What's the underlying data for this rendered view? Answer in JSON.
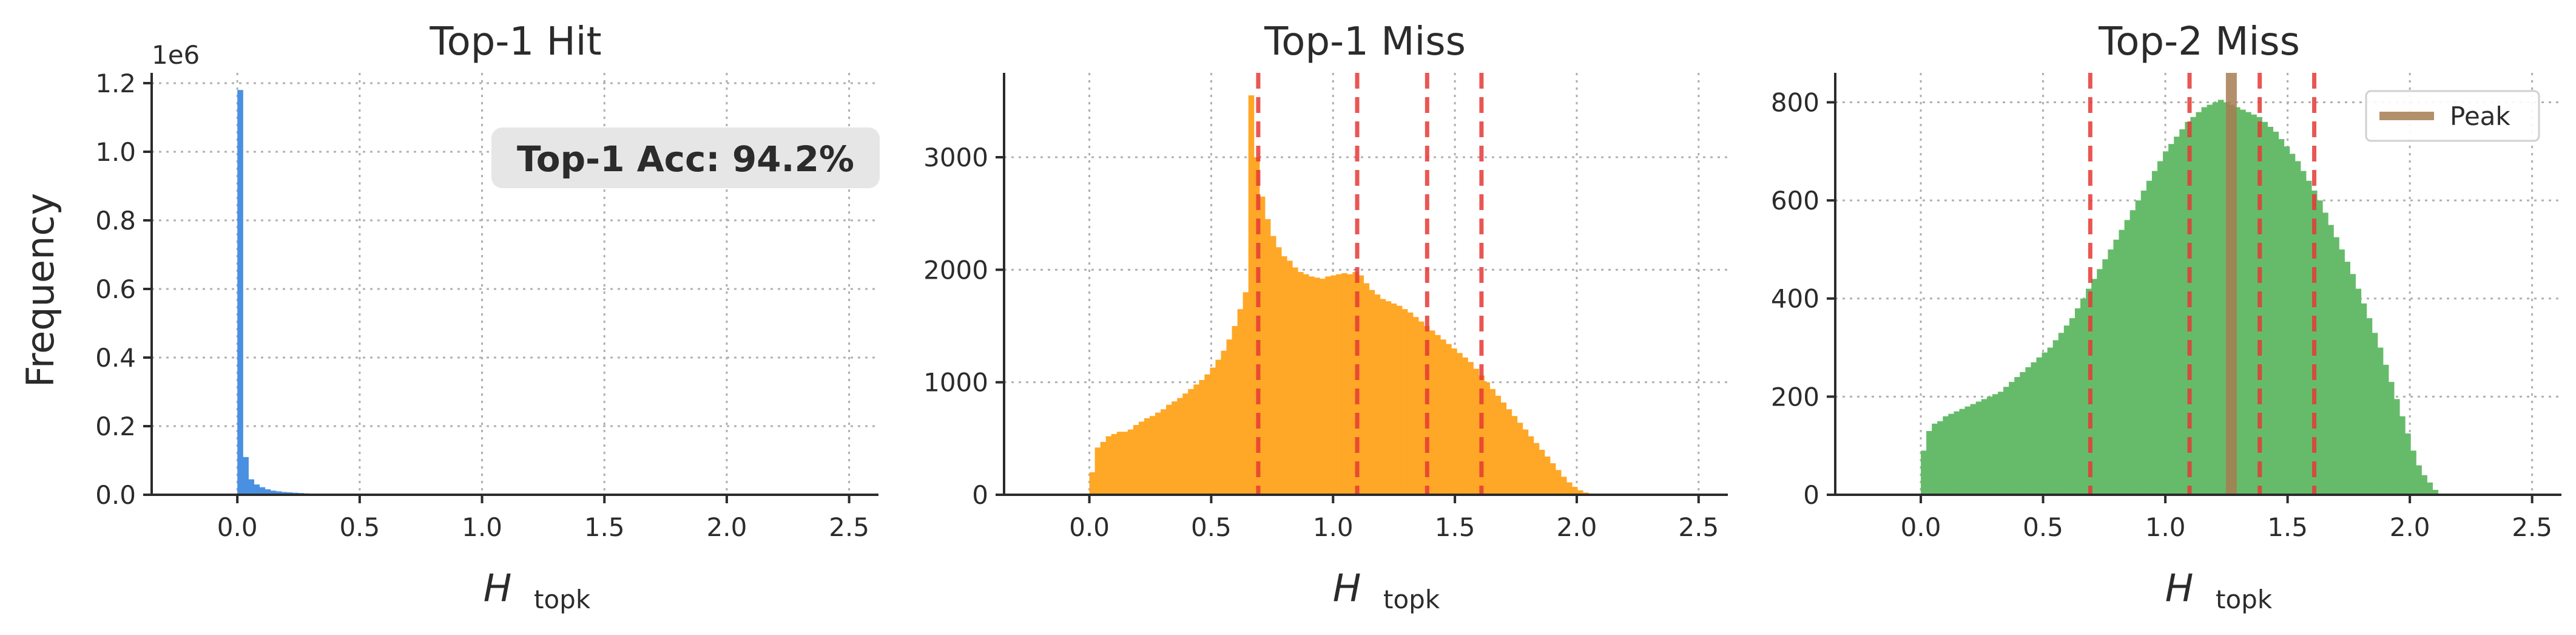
{
  "chart_data": [
    {
      "type": "bar",
      "title": "Top-1 Hit",
      "xlabel_main": "H",
      "xlabel_sub": "topk",
      "ylabel": "Frequency",
      "y_multiplier_label": "1e6",
      "xlim": [
        -0.35,
        2.62
      ],
      "ylim": [
        0,
        1.23
      ],
      "xticks": [
        0.0,
        0.5,
        1.0,
        1.5,
        2.0,
        2.5
      ],
      "xtick_labels": [
        "0.0",
        "0.5",
        "1.0",
        "1.5",
        "2.0",
        "2.5"
      ],
      "yticks": [
        0.0,
        0.2,
        0.4,
        0.6,
        0.8,
        1.0,
        1.2
      ],
      "ytick_labels": [
        "0.0",
        "0.2",
        "0.4",
        "0.6",
        "0.8",
        "1.0",
        "1.2"
      ],
      "grid": true,
      "color": "#4a90e2",
      "bin_start": 0.0,
      "bin_width": 0.0225,
      "values": [
        1.18,
        0.11,
        0.045,
        0.03,
        0.022,
        0.016,
        0.012,
        0.01,
        0.008,
        0.007,
        0.006,
        0.005,
        0.004,
        0.0035,
        0.003,
        0.0025,
        0.0022,
        0.002,
        0.0018,
        0.0016,
        0.0015,
        0.0013,
        0.0012,
        0.0011,
        0.001,
        0.001,
        0.0009,
        0.0008,
        0.0008,
        0.0007,
        0.0014,
        0.0016,
        0.0012,
        0.0008,
        0.0006
      ],
      "annotation": "Top-1 Acc: 94.2%"
    },
    {
      "type": "bar",
      "title": "Top-1 Miss",
      "xlabel_main": "H",
      "xlabel_sub": "topk",
      "xlim": [
        -0.35,
        2.62
      ],
      "ylim": [
        0,
        3750
      ],
      "xticks": [
        0.0,
        0.5,
        1.0,
        1.5,
        2.0,
        2.5
      ],
      "xtick_labels": [
        "0.0",
        "0.5",
        "1.0",
        "1.5",
        "2.0",
        "2.5"
      ],
      "yticks": [
        0,
        1000,
        2000,
        3000
      ],
      "ytick_labels": [
        "0",
        "1000",
        "2000",
        "3000"
      ],
      "grid": true,
      "color": "#ffa726",
      "bin_start": 0.0,
      "bin_width": 0.0225,
      "values": [
        200,
        420,
        470,
        520,
        540,
        560,
        560,
        580,
        620,
        650,
        680,
        700,
        730,
        760,
        800,
        830,
        860,
        900,
        940,
        980,
        1020,
        1070,
        1130,
        1200,
        1280,
        1380,
        1500,
        1650,
        1800,
        3550,
        3000,
        2650,
        2450,
        2300,
        2200,
        2120,
        2080,
        2020,
        1980,
        1960,
        1940,
        1930,
        1920,
        1940,
        1950,
        1960,
        1970,
        1960,
        1980,
        1950,
        1880,
        1820,
        1780,
        1740,
        1720,
        1700,
        1680,
        1650,
        1620,
        1580,
        1540,
        1500,
        1460,
        1420,
        1380,
        1340,
        1300,
        1260,
        1220,
        1180,
        1120,
        1060,
        1000,
        940,
        880,
        820,
        760,
        700,
        640,
        580,
        520,
        460,
        400,
        340,
        280,
        220,
        160,
        110,
        70,
        40,
        20,
        10
      ],
      "vlines": [
        0.693,
        1.099,
        1.386,
        1.609
      ],
      "vline_color": "#e53935"
    },
    {
      "type": "bar",
      "title": "Top-2 Miss",
      "xlabel_main": "H",
      "xlabel_sub": "topk",
      "xlim": [
        -0.35,
        2.62
      ],
      "ylim": [
        0,
        860
      ],
      "xticks": [
        0.0,
        0.5,
        1.0,
        1.5,
        2.0,
        2.5
      ],
      "xtick_labels": [
        "0.0",
        "0.5",
        "1.0",
        "1.5",
        "2.0",
        "2.5"
      ],
      "yticks": [
        0,
        200,
        400,
        600,
        800
      ],
      "ytick_labels": [
        "0",
        "200",
        "400",
        "600",
        "800"
      ],
      "grid": true,
      "color": "#66bb6a",
      "bin_start": 0.0,
      "bin_width": 0.0225,
      "values": [
        90,
        130,
        145,
        150,
        160,
        165,
        170,
        175,
        180,
        185,
        190,
        195,
        200,
        205,
        210,
        220,
        230,
        240,
        250,
        260,
        270,
        280,
        290,
        300,
        315,
        330,
        345,
        360,
        380,
        400,
        420,
        440,
        460,
        480,
        500,
        520,
        540,
        560,
        580,
        600,
        620,
        640,
        660,
        680,
        700,
        715,
        730,
        745,
        760,
        770,
        780,
        790,
        795,
        800,
        805,
        800,
        795,
        790,
        785,
        780,
        775,
        770,
        760,
        750,
        740,
        725,
        710,
        695,
        680,
        660,
        640,
        620,
        600,
        575,
        550,
        525,
        500,
        475,
        450,
        420,
        390,
        360,
        330,
        300,
        265,
        230,
        195,
        160,
        125,
        90,
        60,
        40,
        25,
        10
      ],
      "vlines": [
        0.693,
        1.099,
        1.386,
        1.609
      ],
      "vline_color": "#e53935",
      "peak_x": 1.27,
      "peak_color": "#a67c52",
      "legend": [
        "Peak"
      ],
      "legend_position": "top-right"
    }
  ]
}
